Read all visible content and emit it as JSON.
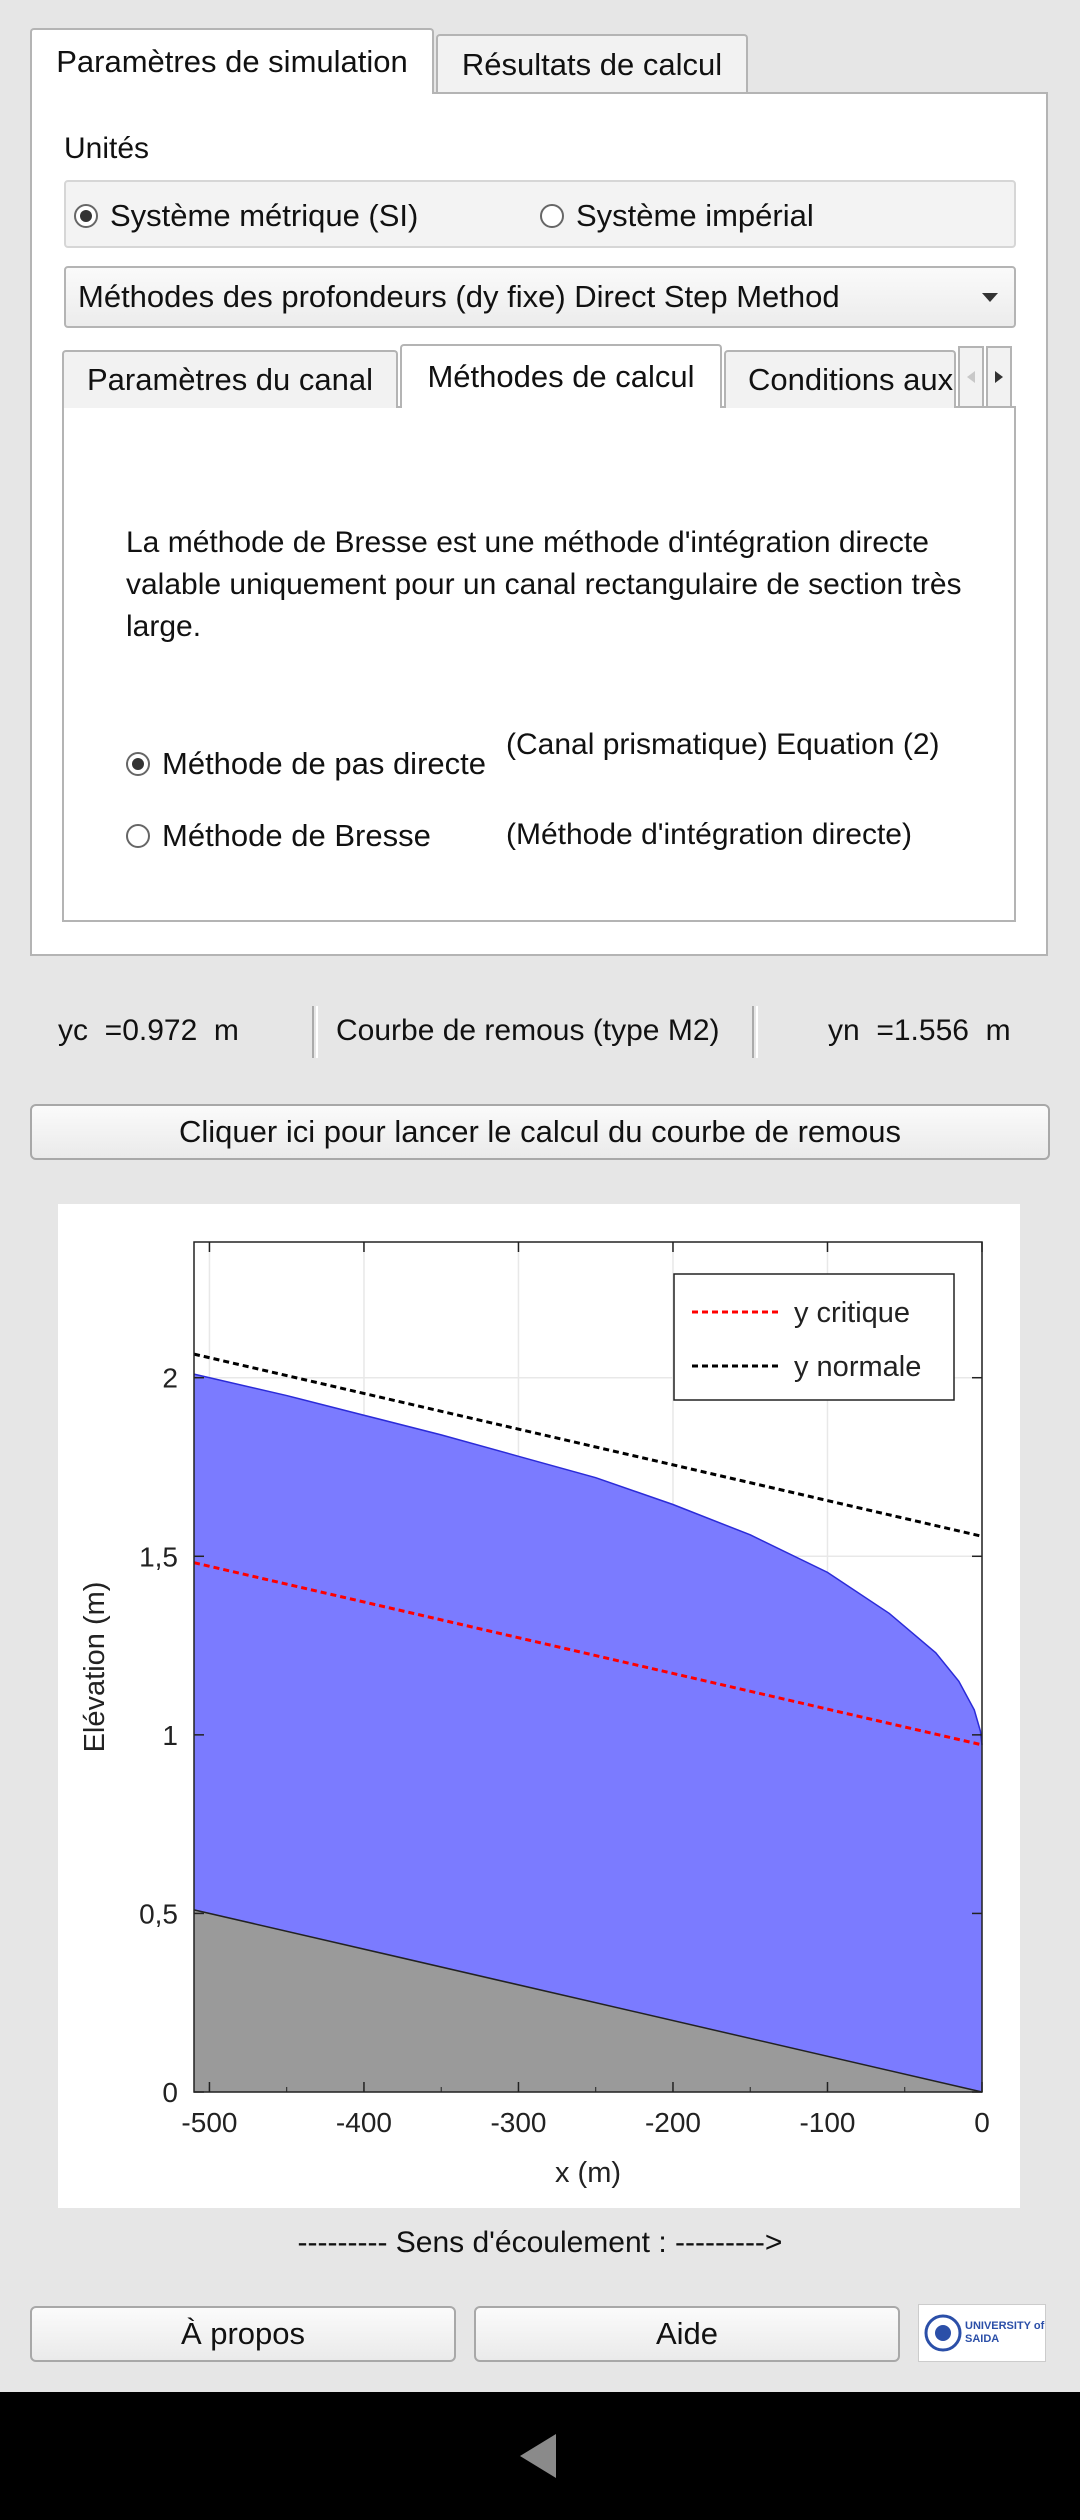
{
  "tabs": [
    {
      "label": "Paramètres de simulation",
      "active": true
    },
    {
      "label": "Résultats de calcul",
      "active": false
    }
  ],
  "units": {
    "title": "Unités",
    "options": [
      {
        "label": "Système métrique (SI)",
        "selected": true
      },
      {
        "label": "Système impérial",
        "selected": false
      }
    ]
  },
  "method_select": {
    "value": "Méthodes des profondeurs (dy fixe) Direct Step Method"
  },
  "sub_tabs": [
    {
      "label": "Paramètres du canal",
      "active": false
    },
    {
      "label": "Méthodes de calcul",
      "active": true
    },
    {
      "label": "Conditions aux",
      "active": false
    }
  ],
  "method_panel": {
    "description": "La méthode de Bresse est une méthode d'intégration directe valable uniquement pour un canal rectangulaire de section très large.",
    "options": [
      {
        "label": "Méthode de pas directe",
        "note": "(Canal prismatique) Equation (2)",
        "selected": true
      },
      {
        "label": "Méthode de Bresse",
        "note": "(Méthode d'intégration directe)",
        "selected": false
      }
    ]
  },
  "status": {
    "yc": "yc  =0.972  m",
    "curve": "Courbe de remous (type M2)",
    "yn": "yn  =1.556  m"
  },
  "run_button": "Cliquer ici pour lancer le calcul du courbe de remous",
  "chart_data": {
    "type": "area",
    "xlabel": "x (m)",
    "ylabel": "Elévation (m)",
    "xlim": [
      -510,
      0
    ],
    "ylim": [
      0,
      2.38
    ],
    "xticks": [
      "-500",
      "-400",
      "-300",
      "-200",
      "-100",
      "0"
    ],
    "yticks": [
      "0",
      "0,5",
      "1",
      "1,5",
      "2"
    ],
    "grid": true,
    "legend_position": "top-right",
    "series": [
      {
        "name": "",
        "kind": "bed",
        "color": "#9a9a9a",
        "x": [
          -510,
          0
        ],
        "y": [
          0.51,
          0
        ]
      },
      {
        "name": "",
        "kind": "water-surface",
        "color": "#7b7bff",
        "x": [
          -510,
          -450,
          -400,
          -350,
          -300,
          -250,
          -200,
          -150,
          -100,
          -60,
          -30,
          -15,
          -5,
          -1,
          0
        ],
        "y": [
          2.01,
          1.95,
          1.895,
          1.84,
          1.78,
          1.72,
          1.645,
          1.56,
          1.455,
          1.34,
          1.23,
          1.15,
          1.07,
          1.01,
          0.972
        ]
      },
      {
        "name": "y critique",
        "kind": "line",
        "color": "#ff0000",
        "x": [
          -510,
          0
        ],
        "y": [
          1.482,
          0.972
        ]
      },
      {
        "name": "y normale",
        "kind": "line",
        "color": "#000000",
        "x": [
          -510,
          0
        ],
        "y": [
          2.066,
          1.556
        ]
      }
    ]
  },
  "flow_direction": "--------- Sens d'écoulement : --------->",
  "bottom": {
    "about": "À propos",
    "help": "Aide",
    "logo_text": "UNIVERSITY of SAIDA"
  }
}
